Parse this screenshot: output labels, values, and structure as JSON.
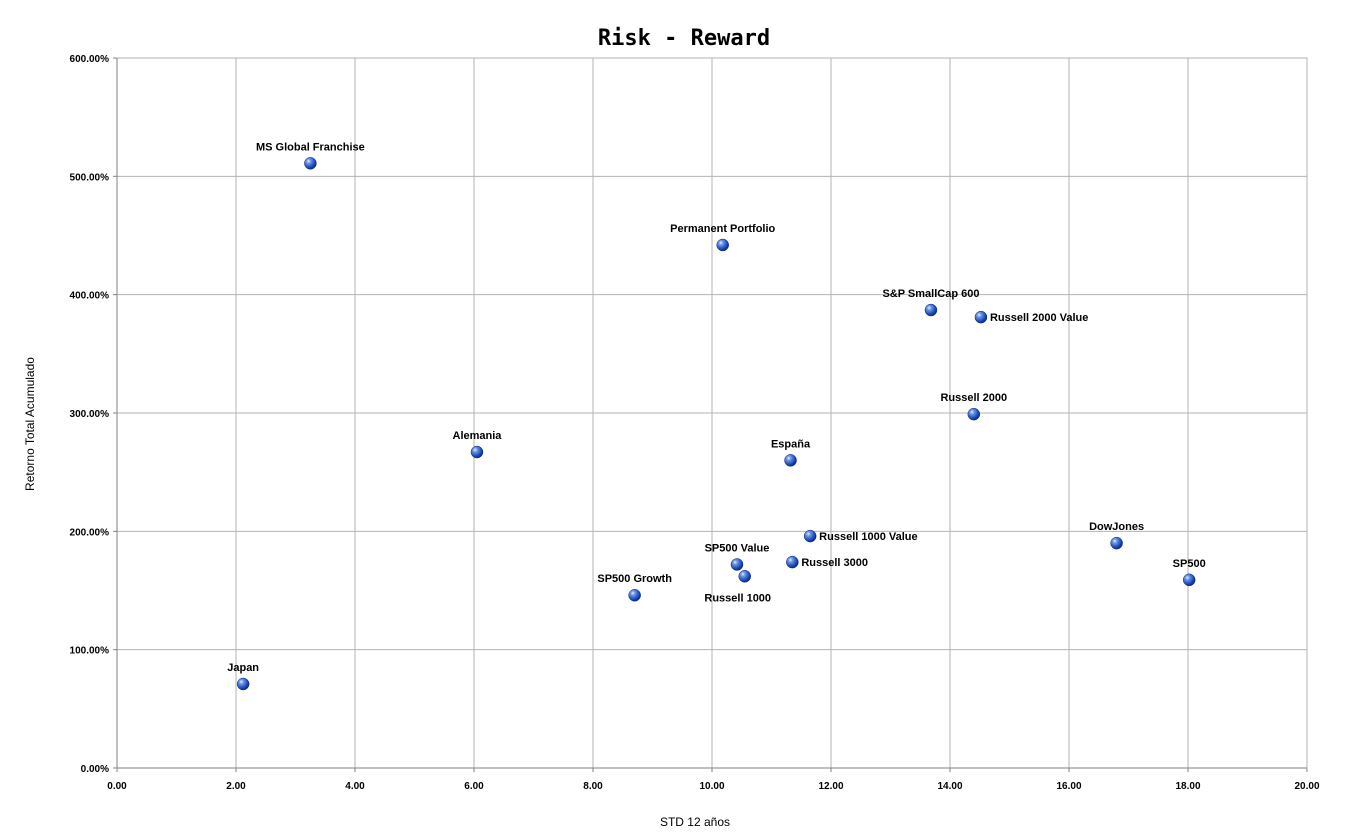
{
  "chart_data": {
    "type": "scatter",
    "title": "Risk - Reward",
    "xlabel": "STD 12 años",
    "ylabel": "Retorno Total Acumulado",
    "xlim": [
      0,
      20
    ],
    "ylim": [
      0,
      600
    ],
    "x_ticks": [
      "0.00",
      "2.00",
      "4.00",
      "6.00",
      "8.00",
      "10.00",
      "12.00",
      "14.00",
      "16.00",
      "18.00",
      "20.00"
    ],
    "y_ticks": [
      "0.00%",
      "100.00%",
      "200.00%",
      "300.00%",
      "400.00%",
      "500.00%",
      "600.00%"
    ],
    "grid": true,
    "marker_color": "#1f4fbf",
    "points": [
      {
        "label": "MS Global Franchise",
        "x": 3.25,
        "y": 511,
        "label_pos": "above"
      },
      {
        "label": "Permanent Portfolio",
        "x": 10.18,
        "y": 442,
        "label_pos": "above"
      },
      {
        "label": "S&P SmallCap 600",
        "x": 13.68,
        "y": 387,
        "label_pos": "above"
      },
      {
        "label": "Russell 2000 Value",
        "x": 14.52,
        "y": 381,
        "label_pos": "right"
      },
      {
        "label": "Russell 2000",
        "x": 14.4,
        "y": 299,
        "label_pos": "above"
      },
      {
        "label": "Alemania",
        "x": 6.05,
        "y": 267,
        "label_pos": "above"
      },
      {
        "label": "España",
        "x": 11.32,
        "y": 260,
        "label_pos": "above"
      },
      {
        "label": "Russell 1000 Value",
        "x": 11.65,
        "y": 196,
        "label_pos": "right"
      },
      {
        "label": "DowJones",
        "x": 16.8,
        "y": 190,
        "label_pos": "above"
      },
      {
        "label": "Russell 3000",
        "x": 11.35,
        "y": 174,
        "label_pos": "right"
      },
      {
        "label": "SP500 Value",
        "x": 10.42,
        "y": 172,
        "label_pos": "above"
      },
      {
        "label": "Russell 1000",
        "x": 10.55,
        "y": 162,
        "label_pos": "below"
      },
      {
        "label": "SP500",
        "x": 18.02,
        "y": 159,
        "label_pos": "above"
      },
      {
        "label": "SP500 Growth",
        "x": 8.7,
        "y": 146,
        "label_pos": "above"
      },
      {
        "label": "Japan",
        "x": 2.12,
        "y": 71,
        "label_pos": "above"
      }
    ]
  }
}
